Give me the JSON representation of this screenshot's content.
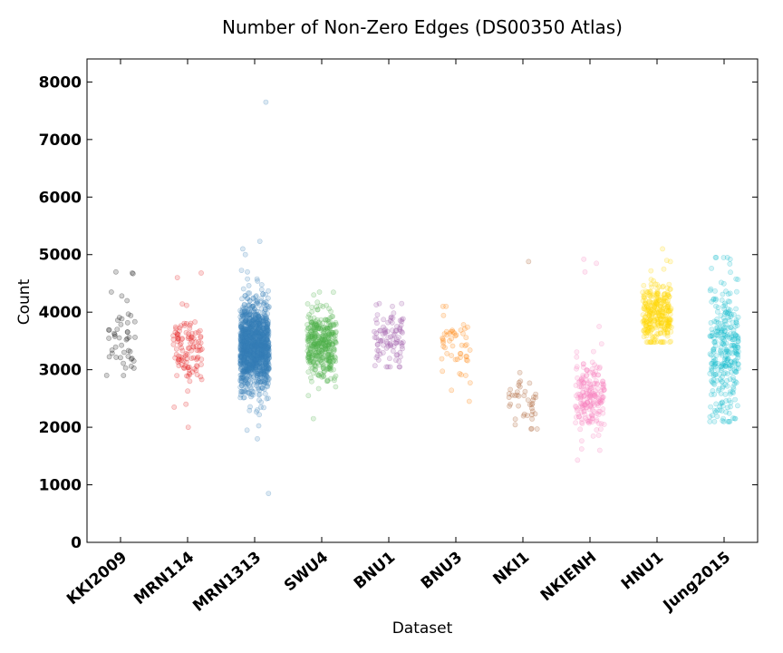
{
  "chart_data": {
    "type": "scatter",
    "title": "Number of Non-Zero Edges (DS00350 Atlas)",
    "xlabel": "Dataset",
    "ylabel": "Count",
    "ylim": [
      0,
      8400
    ],
    "yticks": [
      0,
      1000,
      2000,
      3000,
      4000,
      5000,
      6000,
      7000,
      8000
    ],
    "categories": [
      "KKI2009",
      "MRN114",
      "MRN1313",
      "SWU4",
      "BNU1",
      "BNU3",
      "NKI1",
      "NKIENH",
      "HNU1",
      "Jung2015"
    ],
    "grid": false,
    "legend": "none",
    "series": [
      {
        "category": "KKI2009",
        "color": "#000000",
        "n": 42,
        "center": 3450,
        "spread": 300,
        "min": 2900,
        "max": 4700,
        "outliers": [
          4700,
          4670,
          4680,
          4350,
          4200,
          2900
        ]
      },
      {
        "category": "MRN114",
        "color": "#e41a1c",
        "n": 110,
        "center": 3400,
        "spread": 300,
        "min": 2000,
        "max": 4680,
        "outliers": [
          4680,
          4600,
          2000,
          2400,
          2350
        ]
      },
      {
        "category": "MRN1313",
        "color": "#377eb8",
        "n": 1300,
        "center": 3400,
        "spread": 380,
        "min": 850,
        "max": 7650,
        "outliers": [
          7650,
          850,
          5230,
          5100,
          5000,
          1800,
          1950,
          4700
        ]
      },
      {
        "category": "SWU4",
        "color": "#4daf4a",
        "n": 380,
        "center": 3450,
        "spread": 280,
        "min": 2150,
        "max": 4350,
        "outliers": [
          2150,
          4350,
          4300
        ]
      },
      {
        "category": "BNU1",
        "color": "#984ea3",
        "n": 90,
        "center": 3550,
        "spread": 230,
        "min": 3050,
        "max": 4150,
        "outliers": [
          4150,
          4100,
          3050
        ]
      },
      {
        "category": "BNU3",
        "color": "#ff7f00",
        "n": 48,
        "center": 3450,
        "spread": 280,
        "min": 2450,
        "max": 4100,
        "outliers": [
          4100,
          2450,
          2900
        ]
      },
      {
        "category": "NKI1",
        "color": "#a65628",
        "n": 38,
        "center": 2450,
        "spread": 220,
        "min": 1970,
        "max": 4880,
        "outliers": [
          4880,
          1970,
          2950
        ]
      },
      {
        "category": "NKIENH",
        "color": "#f781bf",
        "n": 200,
        "center": 2550,
        "spread": 320,
        "min": 1430,
        "max": 4920,
        "outliers": [
          4920,
          4850,
          4700,
          1430,
          1600,
          3450
        ]
      },
      {
        "category": "HNU1",
        "color": "#ffd700",
        "n": 300,
        "center": 3950,
        "spread": 280,
        "min": 3480,
        "max": 5100,
        "outliers": [
          5100,
          4900,
          4880
        ]
      },
      {
        "category": "Jung2015",
        "color": "#17becf",
        "n": 300,
        "center": 3300,
        "spread": 600,
        "min": 2100,
        "max": 4950,
        "outliers": [
          4950,
          4920,
          2100,
          2150
        ]
      }
    ]
  }
}
